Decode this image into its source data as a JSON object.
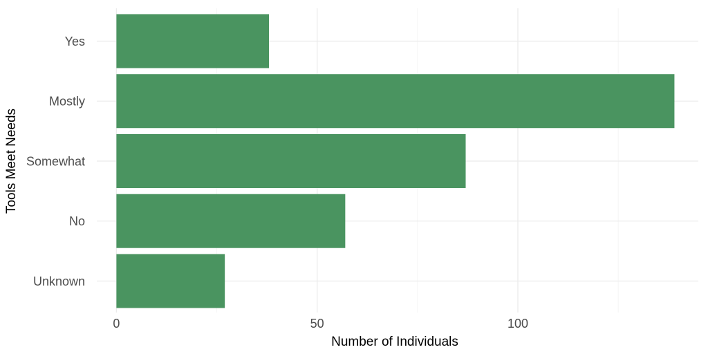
{
  "chart_data": {
    "type": "bar",
    "orientation": "horizontal",
    "categories": [
      "Yes",
      "Mostly",
      "Somewhat",
      "No",
      "Unknown"
    ],
    "values": [
      38,
      139,
      87,
      57,
      27
    ],
    "xlabel": "Number of Individuals",
    "ylabel": "Tools Meet Needs",
    "xlim": [
      0,
      142
    ],
    "xticks": [
      0,
      50,
      100
    ],
    "xtick_labels": [
      "0",
      "50",
      "100"
    ],
    "bar_color": "#4a9460",
    "grid": true,
    "legend": "none"
  }
}
